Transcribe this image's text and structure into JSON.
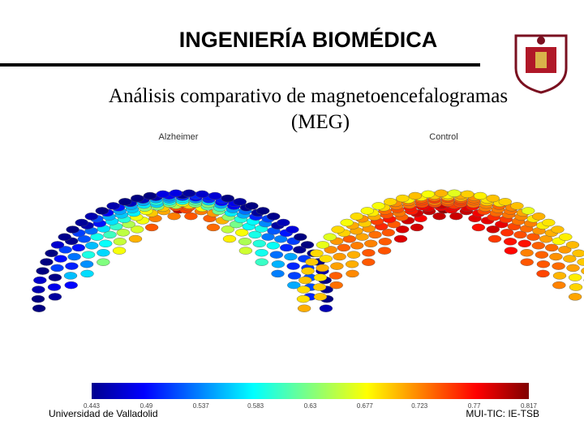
{
  "header": {
    "title": "INGENIERÍA BIOMÉDICA"
  },
  "subtitle": [
    "Análisis comparativo de magnetoencefalogramas",
    "(MEG)"
  ],
  "panels": [
    "Alzheimer",
    "Control"
  ],
  "colorbar": {
    "ticks": [
      "0.443",
      "0.49",
      "0.537",
      "0.583",
      "0.63",
      "0.677",
      "0.723",
      "0.77",
      "0.817"
    ]
  },
  "footer": {
    "left": "Universidad de Valladolid",
    "right": "MUI-TIC: IE-TSB"
  }
}
